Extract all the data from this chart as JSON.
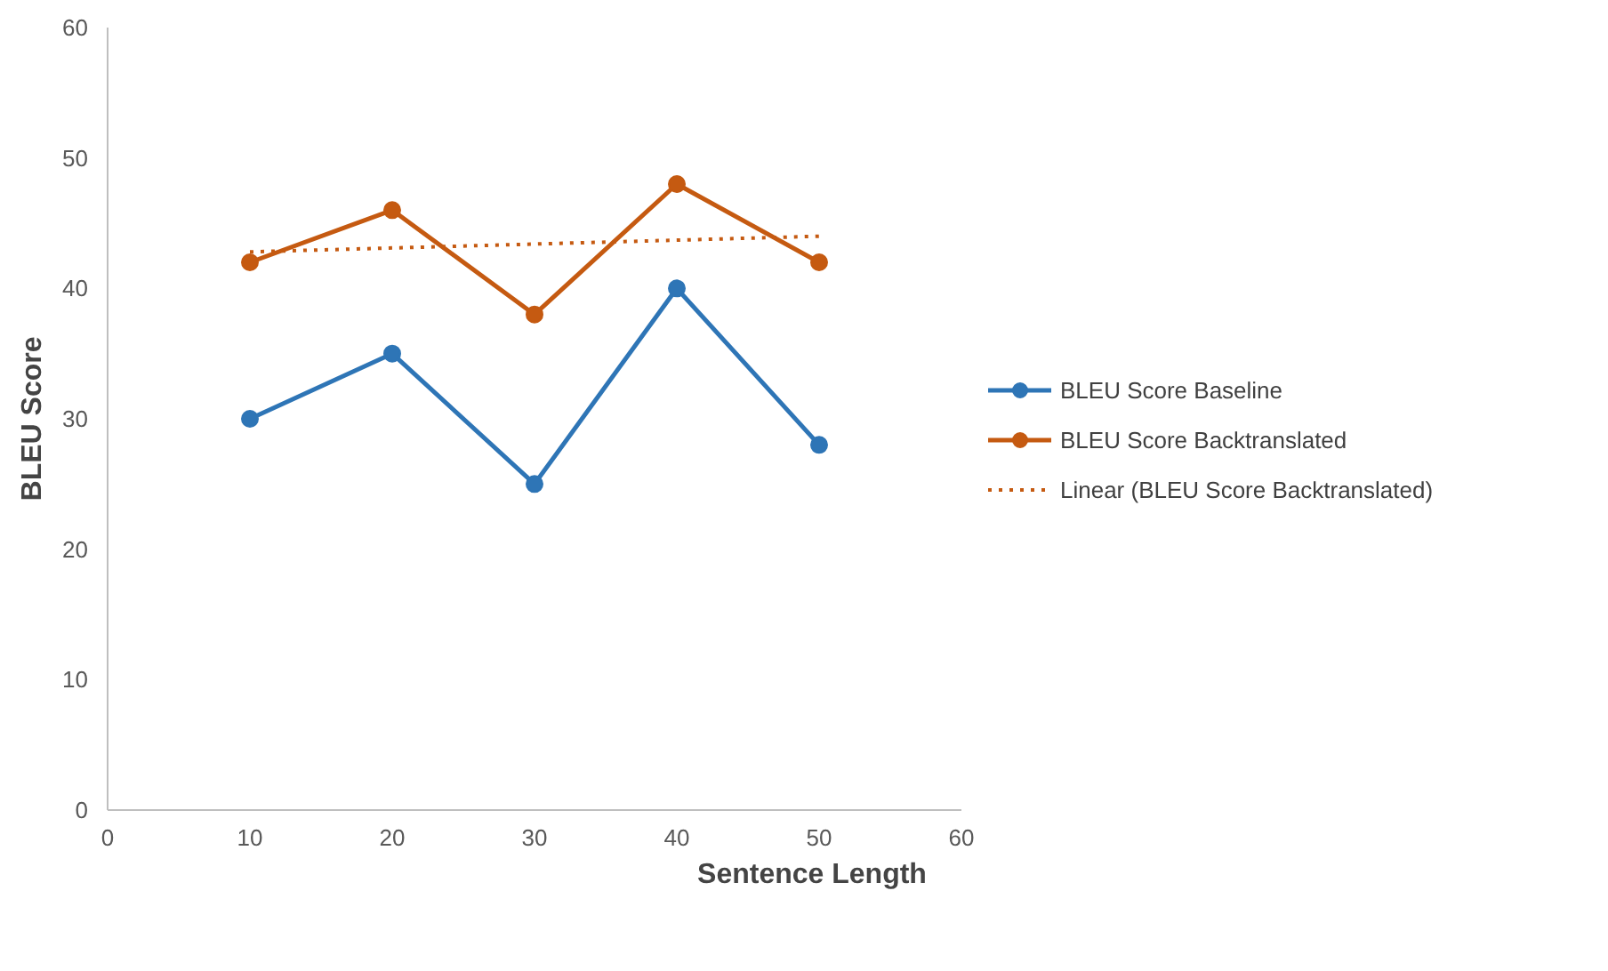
{
  "chart_data": {
    "type": "line",
    "xlabel": "Sentence Length",
    "ylabel": "BLEU Score",
    "x": [
      10,
      20,
      30,
      40,
      50
    ],
    "series": [
      {
        "name": "BLEU Score Baseline",
        "color": "#2e75b6",
        "values": [
          30,
          35,
          25,
          40,
          28
        ],
        "marker": "circle"
      },
      {
        "name": "BLEU Score Backtranslated",
        "color": "#c55a11",
        "values": [
          42,
          46,
          38,
          48,
          42
        ],
        "marker": "circle"
      },
      {
        "name": "Linear (BLEU Score Backtranslated)",
        "type": "line",
        "color": "#c55a11",
        "x": [
          10,
          50
        ],
        "values": [
          42.8,
          44.0
        ],
        "line_style": "dotted",
        "marker": "none"
      }
    ],
    "xlim": [
      0,
      60
    ],
    "xticks": [
      0,
      10,
      20,
      30,
      40,
      50,
      60
    ],
    "ylim": [
      0,
      60
    ],
    "yticks": [
      0,
      10,
      20,
      30,
      40,
      50,
      60
    ],
    "grid": false,
    "legend": "right"
  }
}
